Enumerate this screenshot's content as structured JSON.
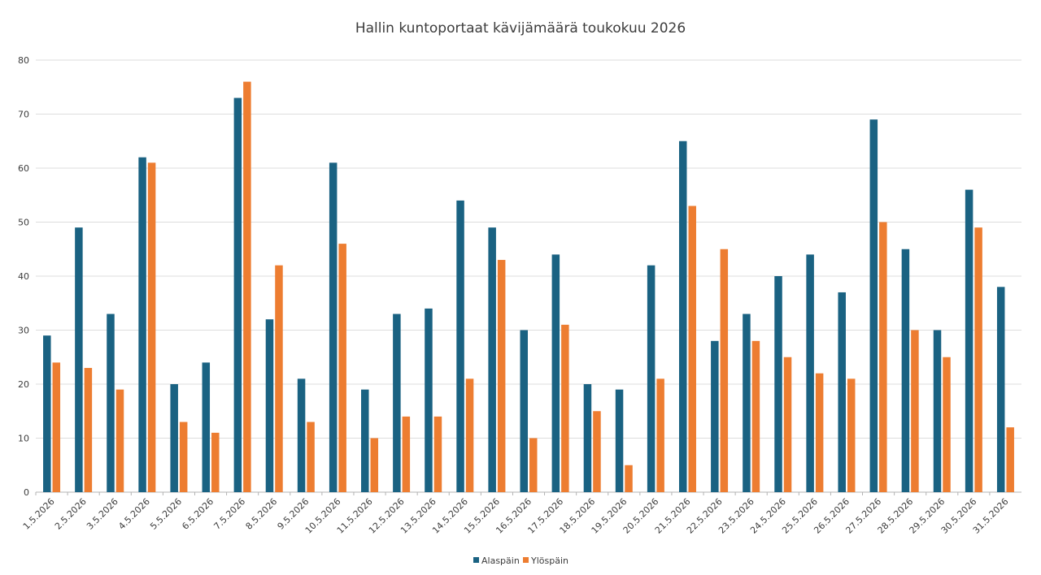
{
  "chart_data": {
    "type": "bar",
    "title": "Hallin kuntoportaat kävijämäärä toukokuu 2026",
    "xlabel": "",
    "ylabel": "",
    "ylim": [
      0,
      80
    ],
    "yticks": [
      0,
      10,
      20,
      30,
      40,
      50,
      60,
      70,
      80
    ],
    "grid": true,
    "legend_position": "bottom",
    "categories": [
      "1.5.2026",
      "2.5.2026",
      "3.5.2026",
      "4.5.2026",
      "5.5.2026",
      "6.5.2026",
      "7.5.2026",
      "8.5.2026",
      "9.5.2026",
      "10.5.2026",
      "11.5.2026",
      "12.5.2026",
      "13.5.2026",
      "14.5.2026",
      "15.5.2026",
      "16.5.2026",
      "17.5.2026",
      "18.5.2026",
      "19.5.2026",
      "20.5.2026",
      "21.5.2026",
      "22.5.2026",
      "23.5.2026",
      "24.5.2026",
      "25.5.2026",
      "26.5.2026",
      "27.5.2026",
      "28.5.2026",
      "29.5.2026",
      "30.5.2026",
      "31.5.2026"
    ],
    "series": [
      {
        "name": "Alaspäin",
        "color": "#1a6282",
        "values": [
          29,
          49,
          33,
          62,
          20,
          24,
          73,
          32,
          21,
          61,
          19,
          33,
          34,
          54,
          49,
          30,
          44,
          20,
          19,
          42,
          65,
          28,
          33,
          40,
          44,
          37,
          69,
          45,
          30,
          56,
          38
        ]
      },
      {
        "name": "Ylöspäin",
        "color": "#ed7d31",
        "values": [
          24,
          23,
          19,
          61,
          13,
          11,
          76,
          42,
          13,
          46,
          10,
          14,
          14,
          21,
          43,
          10,
          31,
          15,
          5,
          21,
          53,
          45,
          28,
          25,
          22,
          21,
          50,
          30,
          25,
          49,
          12
        ]
      }
    ]
  }
}
